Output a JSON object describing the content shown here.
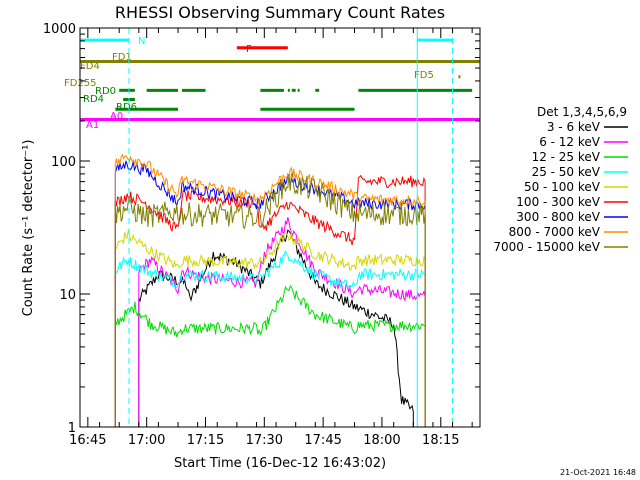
{
  "chart_data": {
    "type": "line",
    "title": "RHESSI Observing Summary Count Rates",
    "xlabel": "Start Time (16-Dec-12 16:43:02)",
    "ylabel": "Count Rate (s⁻¹ detector⁻¹)",
    "yscale": "log",
    "ylim": [
      1,
      1000
    ],
    "xlim_minutes": [
      0,
      102
    ],
    "y_ticks": [
      {
        "v": 1,
        "label": "1"
      },
      {
        "v": 10,
        "label": "10"
      },
      {
        "v": 100,
        "label": "100"
      },
      {
        "v": 1000,
        "label": "1000"
      }
    ],
    "x_ticks": [
      {
        "m": 2,
        "label": "16:45"
      },
      {
        "m": 17,
        "label": "17:00"
      },
      {
        "m": 32,
        "label": "17:15"
      },
      {
        "m": 47,
        "label": "17:30"
      },
      {
        "m": 62,
        "label": "17:45"
      },
      {
        "m": 77,
        "label": "18:00"
      },
      {
        "m": 92,
        "label": "18:15"
      }
    ],
    "legend_title": "Det 1,3,4,5,6,9",
    "series": [
      {
        "name": "3 - 6 keV",
        "color": "#000000",
        "anchors": [
          [
            15,
            9
          ],
          [
            20,
            14
          ],
          [
            27,
            12
          ],
          [
            28,
            9
          ],
          [
            34,
            20
          ],
          [
            40,
            17
          ],
          [
            46,
            12
          ],
          [
            53,
            30
          ],
          [
            60,
            12
          ],
          [
            70,
            8
          ],
          [
            75,
            7
          ],
          [
            80,
            6
          ],
          [
            82,
            1.6
          ],
          [
            85,
            1.3
          ]
        ]
      },
      {
        "name": "6 - 12 keV",
        "color": "#ff00ff",
        "anchors": [
          [
            15,
            15
          ],
          [
            18,
            18
          ],
          [
            25,
            11
          ],
          [
            26,
            15
          ],
          [
            33,
            13
          ],
          [
            45,
            12
          ],
          [
            47,
            20
          ],
          [
            53,
            35
          ],
          [
            60,
            15
          ],
          [
            70,
            10
          ],
          [
            71,
            11
          ],
          [
            88,
            9.5
          ]
        ]
      },
      {
        "name": "12 - 25 keV",
        "color": "#00dd00",
        "anchors": [
          [
            9,
            6
          ],
          [
            14,
            8
          ],
          [
            18,
            6
          ],
          [
            25,
            5
          ],
          [
            26,
            5.5
          ],
          [
            45,
            5.5
          ],
          [
            46,
            5
          ],
          [
            53,
            11
          ],
          [
            60,
            7
          ],
          [
            70,
            5.5
          ],
          [
            71,
            5.8
          ],
          [
            88,
            5.8
          ]
        ]
      },
      {
        "name": "25 - 50 keV",
        "color": "#00ffff",
        "anchors": [
          [
            9,
            15
          ],
          [
            12,
            18
          ],
          [
            17,
            15
          ],
          [
            25,
            12
          ],
          [
            26,
            14
          ],
          [
            45,
            13
          ],
          [
            46,
            13
          ],
          [
            53,
            20
          ],
          [
            60,
            14
          ],
          [
            70,
            11
          ],
          [
            71,
            14
          ],
          [
            88,
            14
          ]
        ]
      },
      {
        "name": "50 - 100 keV",
        "color": "#d6d600",
        "anchors": [
          [
            9,
            22
          ],
          [
            12,
            28
          ],
          [
            17,
            22
          ],
          [
            25,
            16
          ],
          [
            26,
            18
          ],
          [
            45,
            17
          ],
          [
            46,
            17
          ],
          [
            53,
            28
          ],
          [
            60,
            20
          ],
          [
            70,
            16
          ],
          [
            71,
            18
          ],
          [
            88,
            18
          ]
        ]
      },
      {
        "name": "100 - 300 keV",
        "color": "#ff0000",
        "anchors": [
          [
            9,
            48
          ],
          [
            12,
            55
          ],
          [
            17,
            48
          ],
          [
            25,
            30
          ],
          [
            26,
            55
          ],
          [
            45,
            48
          ],
          [
            46,
            30
          ],
          [
            53,
            48
          ],
          [
            60,
            35
          ],
          [
            70,
            25
          ],
          [
            71,
            70
          ],
          [
            88,
            70
          ]
        ]
      },
      {
        "name": "300 - 800 keV",
        "color": "#0000ff",
        "anchors": [
          [
            9,
            85
          ],
          [
            12,
            95
          ],
          [
            17,
            85
          ],
          [
            25,
            48
          ],
          [
            26,
            65
          ],
          [
            45,
            48
          ],
          [
            46,
            48
          ],
          [
            53,
            72
          ],
          [
            60,
            62
          ],
          [
            70,
            48
          ],
          [
            71,
            48
          ],
          [
            88,
            47
          ]
        ]
      },
      {
        "name": "800 - 7000 keV",
        "color": "#ff8c00",
        "anchors": [
          [
            9,
            95
          ],
          [
            12,
            110
          ],
          [
            17,
            95
          ],
          [
            25,
            55
          ],
          [
            26,
            72
          ],
          [
            45,
            52
          ],
          [
            46,
            52
          ],
          [
            53,
            82
          ],
          [
            60,
            70
          ],
          [
            70,
            55
          ],
          [
            71,
            52
          ],
          [
            88,
            50
          ]
        ]
      },
      {
        "name": "7000 - 15000 keV",
        "color": "#808000",
        "anchors": [
          [
            9,
            40
          ],
          [
            12,
            45
          ],
          [
            17,
            38
          ],
          [
            25,
            42
          ],
          [
            26,
            40
          ],
          [
            45,
            38
          ],
          [
            46,
            38
          ],
          [
            53,
            70
          ],
          [
            60,
            60
          ],
          [
            70,
            40
          ],
          [
            71,
            40
          ],
          [
            88,
            40
          ]
        ]
      }
    ],
    "flag_lines": [
      {
        "label": "N",
        "color": "#00ffff",
        "y": 810,
        "segments": [
          [
            0,
            12.5
          ],
          [
            86,
            95
          ]
        ]
      },
      {
        "label": "F",
        "color": "#ff0000",
        "y": 710,
        "segments": [
          [
            40,
            53
          ]
        ]
      },
      {
        "label": "FD1",
        "color": "#808000",
        "y": 560,
        "segments": [
          [
            0,
            102
          ]
        ]
      },
      {
        "label": "FD4",
        "color": "#808000",
        "y": 560,
        "segments": []
      },
      {
        "label": "FD5",
        "color": "#808000",
        "y": 430,
        "segments": [
          [
            96.5,
            97
          ]
        ]
      },
      {
        "label": "FD255",
        "color": "#808000",
        "y": 380,
        "segments": []
      },
      {
        "label": "RD0",
        "color": "#008800",
        "y": 340,
        "segments": [
          [
            10,
            14
          ],
          [
            17,
            25
          ],
          [
            26,
            32
          ],
          [
            46,
            52
          ],
          [
            53,
            53.5
          ],
          [
            54,
            55
          ],
          [
            55.5,
            56
          ],
          [
            60,
            61
          ],
          [
            71,
            100
          ]
        ]
      },
      {
        "label": "RD4",
        "color": "#008800",
        "y": 290,
        "segments": [
          [
            11,
            14
          ]
        ]
      },
      {
        "label": "RD6",
        "color": "#008800",
        "y": 245,
        "segments": [
          [
            9,
            25
          ],
          [
            46,
            70
          ]
        ]
      },
      {
        "label": "A1",
        "color": "#ff00ff",
        "y": 205,
        "segments": [
          [
            0,
            102
          ]
        ]
      },
      {
        "label": "A0",
        "color": "#ff00ff",
        "y": 205,
        "segments": []
      }
    ],
    "vertical_lines": [
      {
        "m": 12.5,
        "style": "dashed",
        "color": "#00ffff"
      },
      {
        "m": 86,
        "style": "solid",
        "color": "#00ffff"
      },
      {
        "m": 95,
        "style": "dashed",
        "color": "#00ffff"
      }
    ]
  },
  "footer": {
    "date": "21-Oct-2021 16:48"
  }
}
